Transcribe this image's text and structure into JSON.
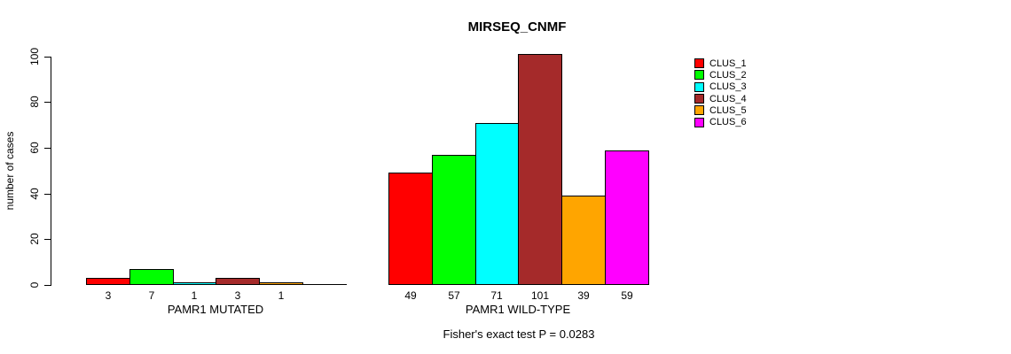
{
  "chart_data": {
    "type": "bar",
    "title": "MIRSEQ_CNMF",
    "ylabel": "number of cases",
    "ylim": [
      0,
      100
    ],
    "yticks": [
      "0",
      "20",
      "40",
      "60",
      "80",
      "100"
    ],
    "grid": false,
    "legend": {
      "position": "right",
      "entries": [
        {
          "label": "CLUS_1",
          "color": "#FF0000"
        },
        {
          "label": "CLUS_2",
          "color": "#00FF00"
        },
        {
          "label": "CLUS_3",
          "color": "#00FFFF"
        },
        {
          "label": "CLUS_4",
          "color": "#A52A2A"
        },
        {
          "label": "CLUS_5",
          "color": "#FFA500"
        },
        {
          "label": "CLUS_6",
          "color": "#FF00FF"
        }
      ]
    },
    "groups": [
      {
        "label": "PAMR1 MUTATED",
        "values": [
          3,
          7,
          1,
          3,
          1,
          0
        ],
        "value_labels": [
          "3",
          "7",
          "1",
          "3",
          "1",
          ""
        ]
      },
      {
        "label": "PAMR1 WILD-TYPE",
        "values": [
          49,
          57,
          71,
          101,
          39,
          59
        ],
        "value_labels": [
          "49",
          "57",
          "71",
          "101",
          "39",
          "59"
        ]
      }
    ],
    "annotation": "Fisher's exact test P = 0.0283"
  }
}
